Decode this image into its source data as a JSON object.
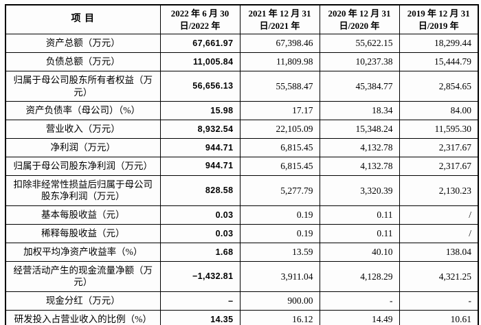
{
  "table": {
    "header": {
      "item": "项 目",
      "periods": [
        [
          "2022 年 6 月 30",
          "日/2022 年"
        ],
        [
          "2021 年 12 月 31",
          "日/2021 年"
        ],
        [
          "2020 年 12 月 31",
          "日/2020 年"
        ],
        [
          "2019 年 12 月 31",
          "日/2019 年"
        ]
      ]
    },
    "rows": [
      {
        "label": "资产总额（万元）",
        "values": [
          "67,661.97",
          "67,398.46",
          "55,622.15",
          "18,299.44"
        ]
      },
      {
        "label": "负债总额（万元）",
        "values": [
          "11,005.84",
          "11,809.98",
          "10,237.38",
          "15,444.79"
        ]
      },
      {
        "label": "归属于母公司股东所有者权益（万元）",
        "values": [
          "56,656.13",
          "55,588.47",
          "45,384.77",
          "2,854.65"
        ]
      },
      {
        "label": "资产负债率（母公司）（%）",
        "values": [
          "15.98",
          "17.17",
          "18.34",
          "84.00"
        ]
      },
      {
        "label": "营业收入（万元）",
        "values": [
          "8,932.54",
          "22,105.09",
          "15,348.24",
          "11,595.30"
        ]
      },
      {
        "label": "净利润（万元）",
        "values": [
          "944.71",
          "6,815.45",
          "4,132.78",
          "2,317.67"
        ]
      },
      {
        "label": "归属于母公司股东净利润（万元）",
        "values": [
          "944.71",
          "6,815.45",
          "4,132.78",
          "2,317.67"
        ]
      },
      {
        "label": "扣除非经常性损益后归属于母公司股东净利润（万元）",
        "values": [
          "828.58",
          "5,277.79",
          "3,320.39",
          "2,130.23"
        ]
      },
      {
        "label": "基本每股收益（元）",
        "values": [
          "0.03",
          "0.19",
          "0.11",
          "/"
        ]
      },
      {
        "label": "稀释每股收益（元）",
        "values": [
          "0.03",
          "0.19",
          "0.11",
          "/"
        ]
      },
      {
        "label": "加权平均净资产收益率（%）",
        "values": [
          "1.68",
          "13.59",
          "40.10",
          "138.04"
        ]
      },
      {
        "label": "经营活动产生的现金流量净额（万元）",
        "values": [
          "−1,432.81",
          "3,911.04",
          "4,128.29",
          "4,321.25"
        ]
      },
      {
        "label": "现金分红（万元）",
        "values": [
          "–",
          "900.00",
          "-",
          "-"
        ]
      },
      {
        "label": "研发投入占营业收入的比例（%）",
        "values": [
          "14.35",
          "16.12",
          "14.49",
          "10.61"
        ]
      }
    ],
    "colors": {
      "border": "#000000",
      "text": "#000000",
      "background": "#fdfdfd"
    }
  }
}
